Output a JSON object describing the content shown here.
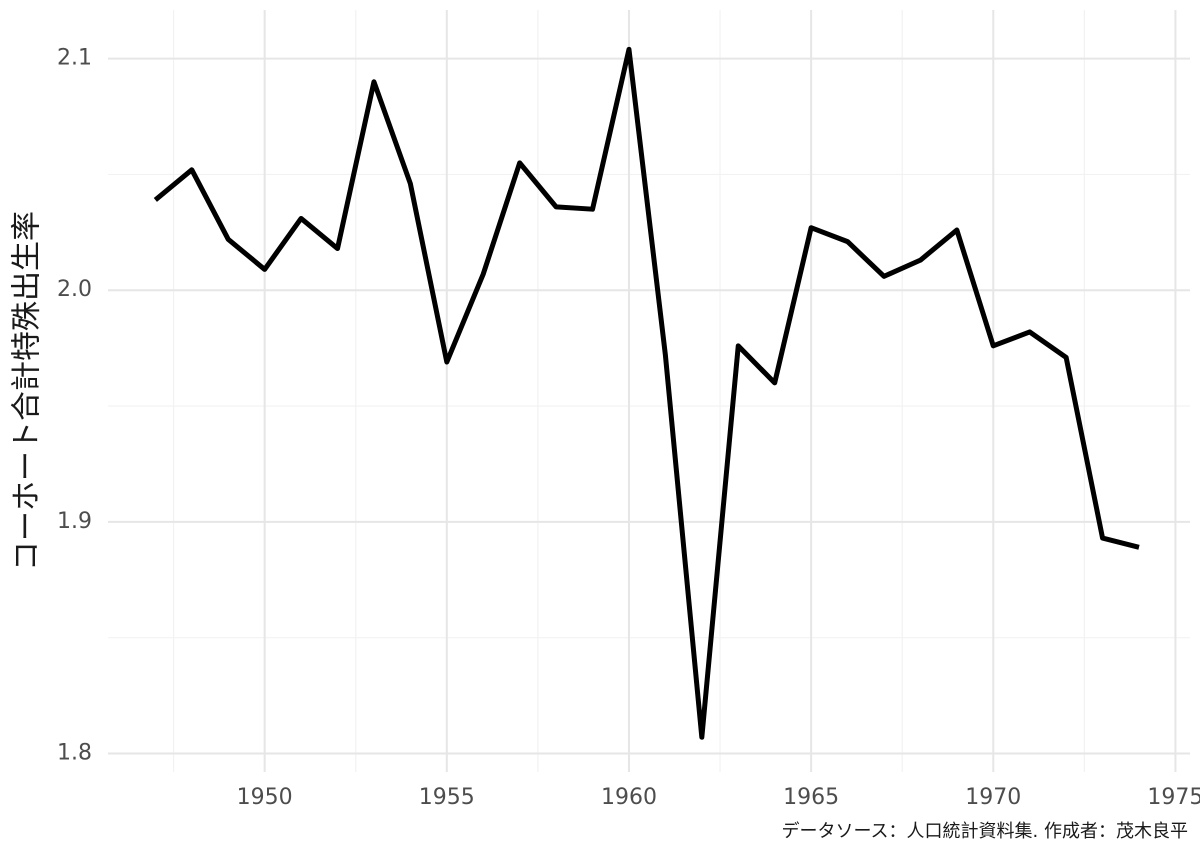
{
  "chart_data": {
    "type": "line",
    "y_label": "コーホート合計特殊出生率",
    "caption": "データソース：人口統計資料集. 作成者：茂木良平",
    "x": [
      1947,
      1948,
      1949,
      1950,
      1951,
      1952,
      1953,
      1954,
      1955,
      1956,
      1957,
      1958,
      1959,
      1960,
      1961,
      1962,
      1963,
      1964,
      1965,
      1966,
      1967,
      1968,
      1969,
      1970,
      1971,
      1972,
      1973,
      1974
    ],
    "series": [
      {
        "color": "#000000",
        "values": [
          2.039,
          2.052,
          2.022,
          2.009,
          2.031,
          2.018,
          2.09,
          2.046,
          1.969,
          2.007,
          2.055,
          2.036,
          2.035,
          2.104,
          1.972,
          1.807,
          1.976,
          1.96,
          2.027,
          2.021,
          2.006,
          2.013,
          2.026,
          1.976,
          1.982,
          1.971,
          1.893,
          1.889
        ]
      }
    ],
    "xlim": [
      1945.7,
      1975.4
    ],
    "ylim": [
      1.792,
      2.121
    ],
    "xticks": [
      1950,
      1955,
      1960,
      1965,
      1970,
      1975
    ],
    "yticks": [
      1.8,
      1.9,
      {
        "value": 2,
        "label": "2.0"
      },
      2.1
    ],
    "xminor": [
      1947.5,
      1952.5,
      1957.5,
      1962.5,
      1967.5,
      1972.5
    ],
    "yminor": [
      1.85,
      1.95,
      2.05
    ],
    "grid": true
  }
}
